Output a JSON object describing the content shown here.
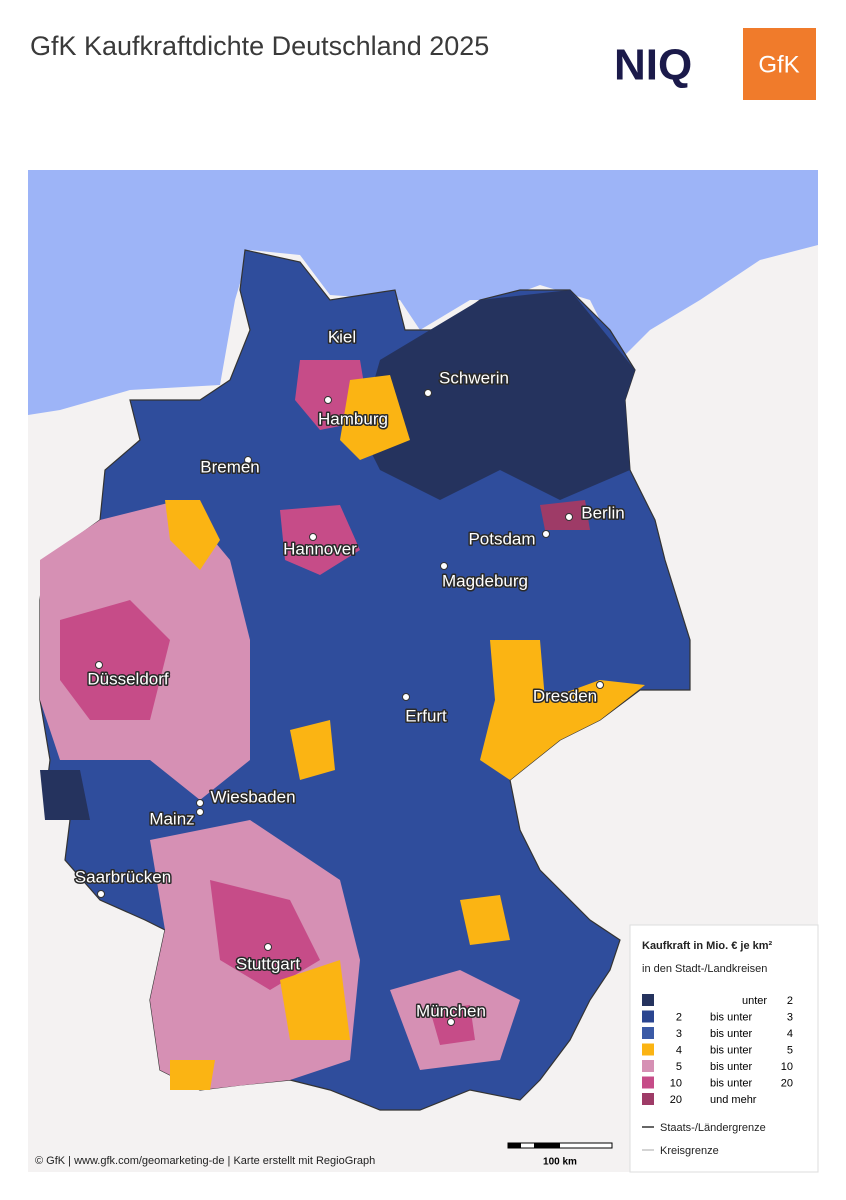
{
  "header": {
    "title": "GfK Kaufkraftdichte Deutschland 2025",
    "logos": [
      "NIQ",
      "GfK"
    ]
  },
  "map": {
    "cities": [
      {
        "name": "Kiel"
      },
      {
        "name": "Hamburg"
      },
      {
        "name": "Schwerin"
      },
      {
        "name": "Bremen"
      },
      {
        "name": "Berlin"
      },
      {
        "name": "Potsdam"
      },
      {
        "name": "Hannover"
      },
      {
        "name": "Magdeburg"
      },
      {
        "name": "Düsseldorf"
      },
      {
        "name": "Dresden"
      },
      {
        "name": "Erfurt"
      },
      {
        "name": "Wiesbaden"
      },
      {
        "name": "Mainz"
      },
      {
        "name": "Saarbrücken"
      },
      {
        "name": "Stuttgart"
      },
      {
        "name": "München"
      }
    ]
  },
  "legend": {
    "title": "Kaufkraft in Mio. € je km²",
    "subtitle": "in den Stadt-/Landkreisen",
    "classes": [
      {
        "color": "#25335e",
        "op": "unter",
        "to": 2
      },
      {
        "color": "#2a4590",
        "from": 2,
        "op": "bis unter",
        "to": 3
      },
      {
        "color": "#3b5aa6",
        "from": 3,
        "op": "bis unter",
        "to": 4
      },
      {
        "color": "#fbb413",
        "from": 4,
        "op": "bis unter",
        "to": 5
      },
      {
        "color": "#d690b4",
        "from": 5,
        "op": "bis unter",
        "to": 10
      },
      {
        "color": "#c64c88",
        "from": 10,
        "op": "bis unter",
        "to": 20
      },
      {
        "color": "#9e3b67",
        "from": 20,
        "op": "und mehr"
      }
    ],
    "lines": [
      {
        "label": "Staats-/Ländergrenze"
      },
      {
        "label": "Kreisgrenze"
      }
    ]
  },
  "footer": {
    "credit": "© GfK | www.gfk.com/geomarketing-de | Karte erstellt mit RegioGraph",
    "scale": "100 km"
  }
}
